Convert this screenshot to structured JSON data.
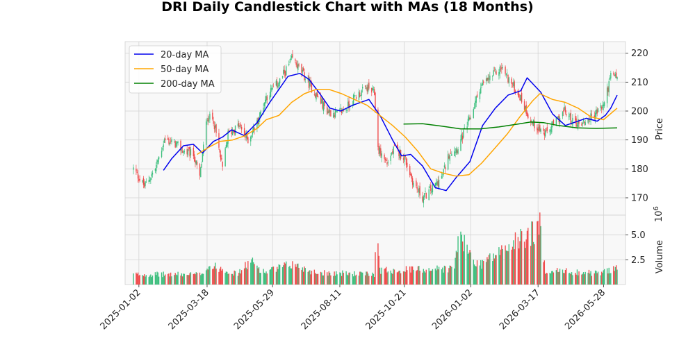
{
  "chart_data": {
    "type": "candlestick",
    "title": "DRI Daily Candlestick Chart with MAs (18 Months)",
    "price_axis": {
      "label": "Price",
      "ylim": [
        164,
        224
      ],
      "ticks": [
        170,
        180,
        190,
        200,
        210,
        220
      ],
      "tick_labels": [
        "170",
        "180",
        "190",
        "200",
        "210",
        "220"
      ]
    },
    "volume_axis": {
      "label": "Volume",
      "multiplier": "10^6",
      "ylim": [
        0,
        7.0
      ],
      "ticks": [
        2.5,
        5.0
      ],
      "tick_labels": [
        "2.5",
        "5.0"
      ]
    },
    "x_axis": {
      "ticks": [
        "2025-01-02",
        "2025-03-18",
        "2025-05-29",
        "2025-08-11",
        "2025-10-21",
        "2026-01-02",
        "2026-03-17",
        "2026-05-28"
      ],
      "start": "2024-12-27",
      "end": "2026-06-12"
    },
    "grid": true,
    "legend": {
      "placement": "top-left",
      "entries": [
        "20-day MA",
        "50-day MA",
        "200-day MA"
      ]
    },
    "colors": {
      "up": "#3dbf7e",
      "down": "#ef4b4b",
      "ma20": "#0000ee",
      "ma50": "#ffa500",
      "ma200": "#008000",
      "panel_bg": "#f8f8f8",
      "grid": "#d4d4d4"
    },
    "price_keypoints": [
      [
        "2024-12-27",
        180
      ],
      [
        "2025-01-08",
        174
      ],
      [
        "2025-01-20",
        180
      ],
      [
        "2025-01-30",
        190
      ],
      [
        "2025-02-10",
        189
      ],
      [
        "2025-02-20",
        186
      ],
      [
        "2025-03-03",
        185
      ],
      [
        "2025-03-10",
        177
      ],
      [
        "2025-03-18",
        198
      ],
      [
        "2025-03-25",
        197
      ],
      [
        "2025-04-04",
        180
      ],
      [
        "2025-04-10",
        192
      ],
      [
        "2025-04-22",
        195
      ],
      [
        "2025-05-02",
        190
      ],
      [
        "2025-05-12",
        196
      ],
      [
        "2025-05-22",
        205
      ],
      [
        "2025-06-05",
        210
      ],
      [
        "2025-06-20",
        218
      ],
      [
        "2025-07-01",
        213
      ],
      [
        "2025-07-15",
        206
      ],
      [
        "2025-07-28",
        200
      ],
      [
        "2025-08-08",
        199
      ],
      [
        "2025-08-18",
        201
      ],
      [
        "2025-08-28",
        205
      ],
      [
        "2025-09-10",
        208
      ],
      [
        "2025-09-18",
        206
      ],
      [
        "2025-09-22",
        187
      ],
      [
        "2025-10-02",
        182
      ],
      [
        "2025-10-10",
        187
      ],
      [
        "2025-10-21",
        184
      ],
      [
        "2025-10-31",
        175
      ],
      [
        "2025-11-10",
        170
      ],
      [
        "2025-11-20",
        173
      ],
      [
        "2025-12-01",
        177
      ],
      [
        "2025-12-10",
        186
      ],
      [
        "2025-12-18",
        187
      ],
      [
        "2026-01-02",
        198
      ],
      [
        "2026-01-12",
        208
      ],
      [
        "2026-01-25",
        212
      ],
      [
        "2026-02-05",
        215
      ],
      [
        "2026-02-15",
        210
      ],
      [
        "2026-02-25",
        205
      ],
      [
        "2026-03-10",
        196
      ],
      [
        "2026-03-25",
        192
      ],
      [
        "2026-04-05",
        196
      ],
      [
        "2026-04-15",
        200
      ],
      [
        "2026-04-25",
        196
      ],
      [
        "2026-05-05",
        196
      ],
      [
        "2026-05-15",
        198
      ],
      [
        "2026-05-28",
        202
      ],
      [
        "2026-06-05",
        212
      ],
      [
        "2026-06-12",
        212
      ]
    ],
    "ma20": [
      [
        "2025-01-29",
        179.5
      ],
      [
        "2025-02-07",
        183.5
      ],
      [
        "2025-02-20",
        188.0
      ],
      [
        "2025-03-03",
        188.5
      ],
      [
        "2025-03-13",
        185.5
      ],
      [
        "2025-03-25",
        189.5
      ],
      [
        "2025-04-04",
        191.0
      ],
      [
        "2025-04-14",
        193.5
      ],
      [
        "2025-04-28",
        191.5
      ],
      [
        "2025-05-12",
        196.0
      ],
      [
        "2025-05-26",
        203.0
      ],
      [
        "2025-06-05",
        207.5
      ],
      [
        "2025-06-15",
        212.0
      ],
      [
        "2025-06-28",
        213.0
      ],
      [
        "2025-07-08",
        211.0
      ],
      [
        "2025-07-20",
        206.0
      ],
      [
        "2025-07-31",
        201.0
      ],
      [
        "2025-08-12",
        200.0
      ],
      [
        "2025-08-25",
        202.0
      ],
      [
        "2025-09-12",
        204.0
      ],
      [
        "2025-09-25",
        198.0
      ],
      [
        "2025-10-08",
        190.0
      ],
      [
        "2025-10-18",
        184.5
      ],
      [
        "2025-10-28",
        185.0
      ],
      [
        "2025-11-10",
        181.0
      ],
      [
        "2025-11-24",
        173.5
      ],
      [
        "2025-12-06",
        172.5
      ],
      [
        "2025-12-17",
        177.0
      ],
      [
        "2026-01-01",
        182.5
      ],
      [
        "2026-01-15",
        195.0
      ],
      [
        "2026-01-29",
        201.0
      ],
      [
        "2026-02-12",
        205.5
      ],
      [
        "2026-02-26",
        207.0
      ],
      [
        "2026-03-05",
        211.5
      ],
      [
        "2026-03-20",
        206.5
      ],
      [
        "2026-04-02",
        199.0
      ],
      [
        "2026-04-16",
        195.0
      ],
      [
        "2026-04-30",
        196.5
      ],
      [
        "2026-05-09",
        197.5
      ],
      [
        "2026-05-21",
        196.5
      ],
      [
        "2026-05-30",
        198.5
      ],
      [
        "2026-06-05",
        201.0
      ],
      [
        "2026-06-12",
        205.5
      ]
    ],
    "ma50": [
      [
        "2025-03-07",
        185.0
      ],
      [
        "2025-03-20",
        187.5
      ],
      [
        "2025-04-01",
        189.5
      ],
      [
        "2025-04-15",
        190.0
      ],
      [
        "2025-04-29",
        191.5
      ],
      [
        "2025-05-12",
        194.0
      ],
      [
        "2025-05-22",
        197.0
      ],
      [
        "2025-06-05",
        198.5
      ],
      [
        "2025-06-19",
        203.0
      ],
      [
        "2025-07-03",
        206.0
      ],
      [
        "2025-07-16",
        207.5
      ],
      [
        "2025-07-30",
        207.5
      ],
      [
        "2025-08-13",
        206.0
      ],
      [
        "2025-08-27",
        204.0
      ],
      [
        "2025-09-10",
        202.0
      ],
      [
        "2025-09-24",
        198.5
      ],
      [
        "2025-10-08",
        195.0
      ],
      [
        "2025-10-22",
        191.0
      ],
      [
        "2025-11-05",
        186.0
      ],
      [
        "2025-11-19",
        180.0
      ],
      [
        "2025-12-03",
        178.5
      ],
      [
        "2025-12-17",
        177.5
      ],
      [
        "2025-12-31",
        178.0
      ],
      [
        "2026-01-14",
        182.0
      ],
      [
        "2026-01-28",
        187.0
      ],
      [
        "2026-02-11",
        192.0
      ],
      [
        "2026-02-25",
        198.0
      ],
      [
        "2026-03-11",
        203.5
      ],
      [
        "2026-03-19",
        206.0
      ],
      [
        "2026-04-02",
        204.0
      ],
      [
        "2026-04-16",
        203.0
      ],
      [
        "2026-04-30",
        201.0
      ],
      [
        "2026-05-14",
        198.0
      ],
      [
        "2026-05-28",
        197.0
      ],
      [
        "2026-06-12",
        201.0
      ]
    ],
    "ma200": [
      [
        "2025-10-20",
        195.5
      ],
      [
        "2025-11-10",
        195.6
      ],
      [
        "2025-12-01",
        194.8
      ],
      [
        "2025-12-22",
        193.8
      ],
      [
        "2026-01-12",
        193.8
      ],
      [
        "2026-02-02",
        194.5
      ],
      [
        "2026-02-23",
        195.5
      ],
      [
        "2026-03-09",
        196.2
      ],
      [
        "2026-03-23",
        196.0
      ],
      [
        "2026-04-08",
        195.0
      ],
      [
        "2026-04-29",
        194.2
      ],
      [
        "2026-05-20",
        194.0
      ],
      [
        "2026-06-12",
        194.2
      ]
    ],
    "volume_keypoints": [
      [
        "2024-12-27",
        1.0
      ],
      [
        "2025-03-10",
        1.0
      ],
      [
        "2025-03-20",
        1.8
      ],
      [
        "2025-04-04",
        1.6
      ],
      [
        "2025-04-20",
        1.0
      ],
      [
        "2025-05-05",
        2.3
      ],
      [
        "2025-05-20",
        1.2
      ],
      [
        "2025-06-20",
        2.0
      ],
      [
        "2025-07-15",
        1.2
      ],
      [
        "2025-09-18",
        1.0
      ],
      [
        "2025-09-20",
        5.3
      ],
      [
        "2025-09-25",
        1.4
      ],
      [
        "2025-12-15",
        1.6
      ],
      [
        "2025-12-19",
        4.8
      ],
      [
        "2026-01-10",
        1.9
      ],
      [
        "2026-03-19",
        5.6
      ],
      [
        "2026-03-25",
        1.4
      ],
      [
        "2026-05-25",
        1.1
      ],
      [
        "2026-06-12",
        1.8
      ]
    ]
  }
}
